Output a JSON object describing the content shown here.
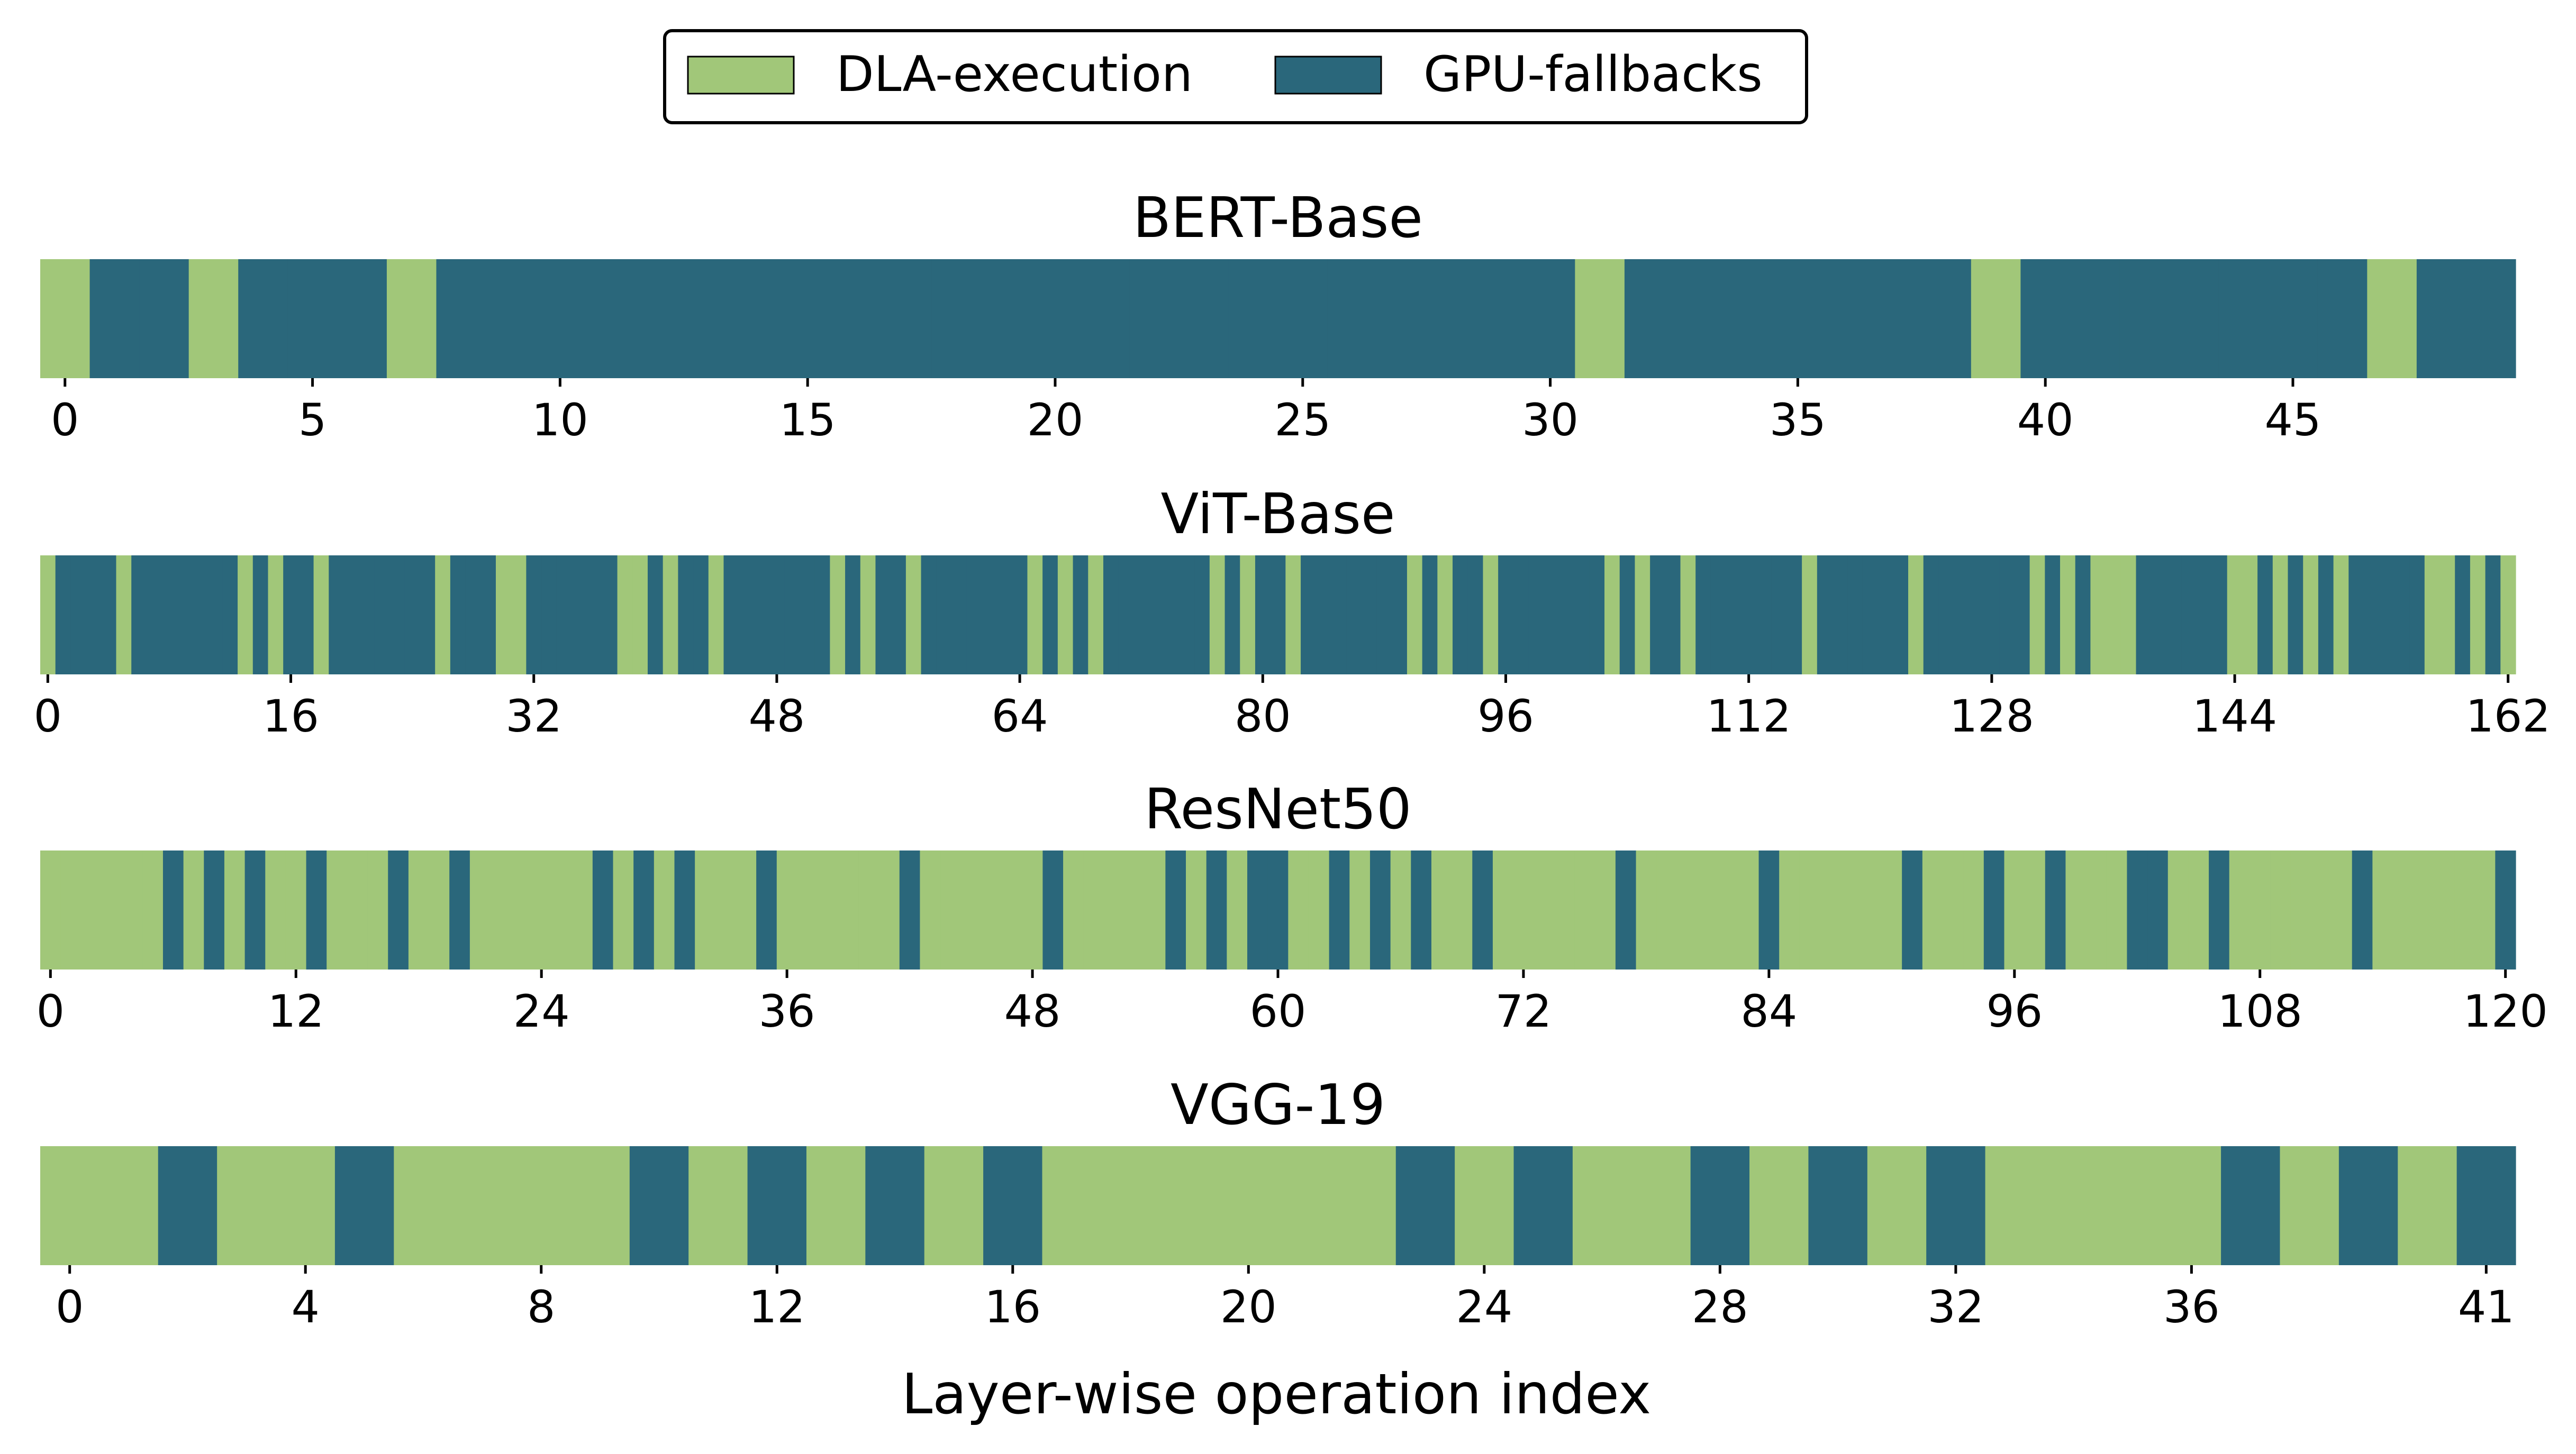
{
  "colors": {
    "dla": "#a1c779",
    "gpu": "#2a677b"
  },
  "legend": [
    {
      "label": "DLA-execution",
      "color": "#a1c779"
    },
    {
      "label": "GPU-fallbacks",
      "color": "#2a677b"
    }
  ],
  "xlabel": "Layer-wise operation index",
  "chart_data": [
    {
      "type": "bar",
      "title": "BERT-Base",
      "n_ops": 50,
      "xlim": [
        -0.5,
        49.5
      ],
      "ticks": [
        0,
        5,
        10,
        15,
        20,
        25,
        30,
        35,
        40,
        45
      ],
      "dla_ops": [
        0,
        3,
        7,
        31,
        39,
        47
      ]
    },
    {
      "type": "bar",
      "title": "ViT-Base",
      "n_ops": 163,
      "xlim": [
        -0.5,
        162.5
      ],
      "ticks": [
        0,
        16,
        32,
        48,
        64,
        80,
        96,
        112,
        128,
        144,
        162
      ],
      "dla_ops": [
        0,
        5,
        13,
        15,
        18,
        26,
        30,
        31,
        38,
        39,
        41,
        44,
        52,
        54,
        57,
        65,
        67,
        69,
        77,
        79,
        82,
        90,
        92,
        95,
        103,
        105,
        108,
        116,
        123,
        131,
        133,
        135,
        136,
        137,
        144,
        145,
        147,
        149,
        151,
        157,
        158,
        160,
        162
      ]
    },
    {
      "type": "bar",
      "title": "ResNet50",
      "n_ops": 121,
      "xlim": [
        -0.5,
        120.5
      ],
      "ticks": [
        0,
        12,
        24,
        36,
        48,
        60,
        72,
        84,
        96,
        108,
        120
      ],
      "gpu_ops": [
        6,
        8,
        10,
        13,
        17,
        20,
        27,
        29,
        31,
        35,
        42,
        49,
        55,
        57,
        59,
        60,
        63,
        65,
        67,
        70,
        77,
        84,
        91,
        95,
        98,
        102,
        103,
        106,
        113,
        120
      ]
    },
    {
      "type": "bar",
      "title": "VGG-19",
      "n_ops": 42,
      "xlim": [
        -0.5,
        41.5
      ],
      "ticks": [
        0,
        4,
        8,
        12,
        16,
        20,
        24,
        28,
        32,
        36,
        41
      ],
      "gpu_ops": [
        2,
        5,
        10,
        12,
        14,
        16,
        23,
        25,
        28,
        30,
        32,
        37,
        39,
        41
      ]
    }
  ]
}
